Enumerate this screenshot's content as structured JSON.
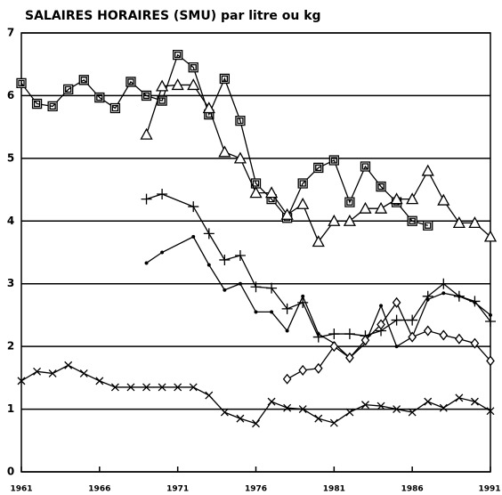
{
  "chart_data": {
    "type": "line",
    "title": "SALAIRES HORAIRES (SMU) par litre ou kg",
    "xlim": [
      1961,
      1991
    ],
    "xticks": [
      1961,
      1966,
      1971,
      1976,
      1981,
      1986,
      1991
    ],
    "ylim": [
      0,
      7
    ],
    "yticks": [
      0,
      1,
      2,
      3,
      4,
      5,
      6,
      7
    ],
    "grid": true,
    "series": [
      {
        "marker": "square",
        "color": "#000000",
        "x": [
          1961,
          1962,
          1963,
          1964,
          1965,
          1966,
          1967,
          1968,
          1969,
          1970,
          1971,
          1972,
          1973,
          1974,
          1975,
          1976,
          1977,
          1978,
          1979,
          1980,
          1981,
          1982,
          1983,
          1984,
          1985,
          1986,
          1987
        ],
        "values": [
          6.2,
          5.87,
          5.83,
          6.1,
          6.25,
          5.97,
          5.8,
          6.22,
          6.0,
          5.92,
          6.65,
          6.45,
          5.7,
          6.27,
          5.6,
          4.6,
          4.35,
          4.05,
          4.6,
          4.85,
          4.97,
          4.3,
          4.87,
          4.55,
          4.3,
          4.0,
          3.93
        ]
      },
      {
        "marker": "triangle",
        "color": "#000000",
        "x": [
          1969,
          1970,
          1971,
          1972,
          1973,
          1974,
          1975,
          1976,
          1977,
          1978,
          1979,
          1980,
          1981,
          1982,
          1983,
          1984,
          1985,
          1986,
          1987,
          1988,
          1989,
          1990,
          1991
        ],
        "values": [
          5.38,
          6.15,
          6.17,
          6.17,
          5.8,
          5.1,
          5.0,
          4.45,
          4.45,
          4.1,
          4.27,
          3.67,
          4.0,
          4.0,
          4.2,
          4.2,
          4.35,
          4.35,
          4.8,
          4.33,
          3.97,
          3.97,
          3.75
        ]
      },
      {
        "marker": "plus",
        "color": "#000000",
        "x": [
          1969,
          1970,
          1972,
          1973,
          1974,
          1975,
          1976,
          1977,
          1978,
          1979,
          1980,
          1981,
          1982,
          1983,
          1984,
          1985,
          1986,
          1987,
          1988,
          1989,
          1990,
          1991
        ],
        "values": [
          4.35,
          4.43,
          4.23,
          3.8,
          3.38,
          3.45,
          2.95,
          2.93,
          2.6,
          2.7,
          2.15,
          2.2,
          2.2,
          2.17,
          2.25,
          2.42,
          2.42,
          2.8,
          3.0,
          2.8,
          2.72,
          2.4
        ]
      },
      {
        "marker": "dot",
        "color": "#000000",
        "x": [
          1969,
          1970,
          1972,
          1973,
          1974,
          1975,
          1976,
          1977,
          1978,
          1979,
          1980,
          1981,
          1982,
          1983,
          1984,
          1985,
          1986,
          1987,
          1988,
          1989,
          1990,
          1991
        ],
        "values": [
          3.33,
          3.5,
          3.75,
          3.3,
          2.9,
          3.0,
          2.55,
          2.55,
          2.25,
          2.8,
          2.2,
          2.05,
          1.82,
          2.05,
          2.65,
          2.0,
          2.15,
          2.75,
          2.85,
          2.8,
          2.7,
          2.5
        ]
      },
      {
        "marker": "diamond",
        "color": "#000000",
        "x": [
          1978,
          1979,
          1980,
          1981,
          1982,
          1983,
          1984,
          1985,
          1986,
          1987,
          1988,
          1989,
          1990,
          1991
        ],
        "values": [
          1.48,
          1.62,
          1.65,
          2.0,
          1.82,
          2.1,
          2.35,
          2.7,
          2.15,
          2.25,
          2.18,
          2.12,
          2.05,
          1.77
        ]
      },
      {
        "marker": "cross",
        "color": "#000000",
        "x": [
          1961,
          1962,
          1963,
          1964,
          1965,
          1966,
          1967,
          1968,
          1969,
          1970,
          1971,
          1972,
          1973,
          1974,
          1975,
          1976,
          1977,
          1978,
          1979,
          1980,
          1981,
          1982,
          1983,
          1984,
          1985,
          1986,
          1987,
          1988,
          1989,
          1990,
          1991
        ],
        "values": [
          1.45,
          1.6,
          1.57,
          1.7,
          1.57,
          1.45,
          1.35,
          1.35,
          1.35,
          1.35,
          1.35,
          1.35,
          1.22,
          0.95,
          0.85,
          0.77,
          1.12,
          1.02,
          1.0,
          0.85,
          0.78,
          0.95,
          1.07,
          1.05,
          1.0,
          0.95,
          1.12,
          1.02,
          1.18,
          1.12,
          0.97
        ]
      }
    ]
  }
}
